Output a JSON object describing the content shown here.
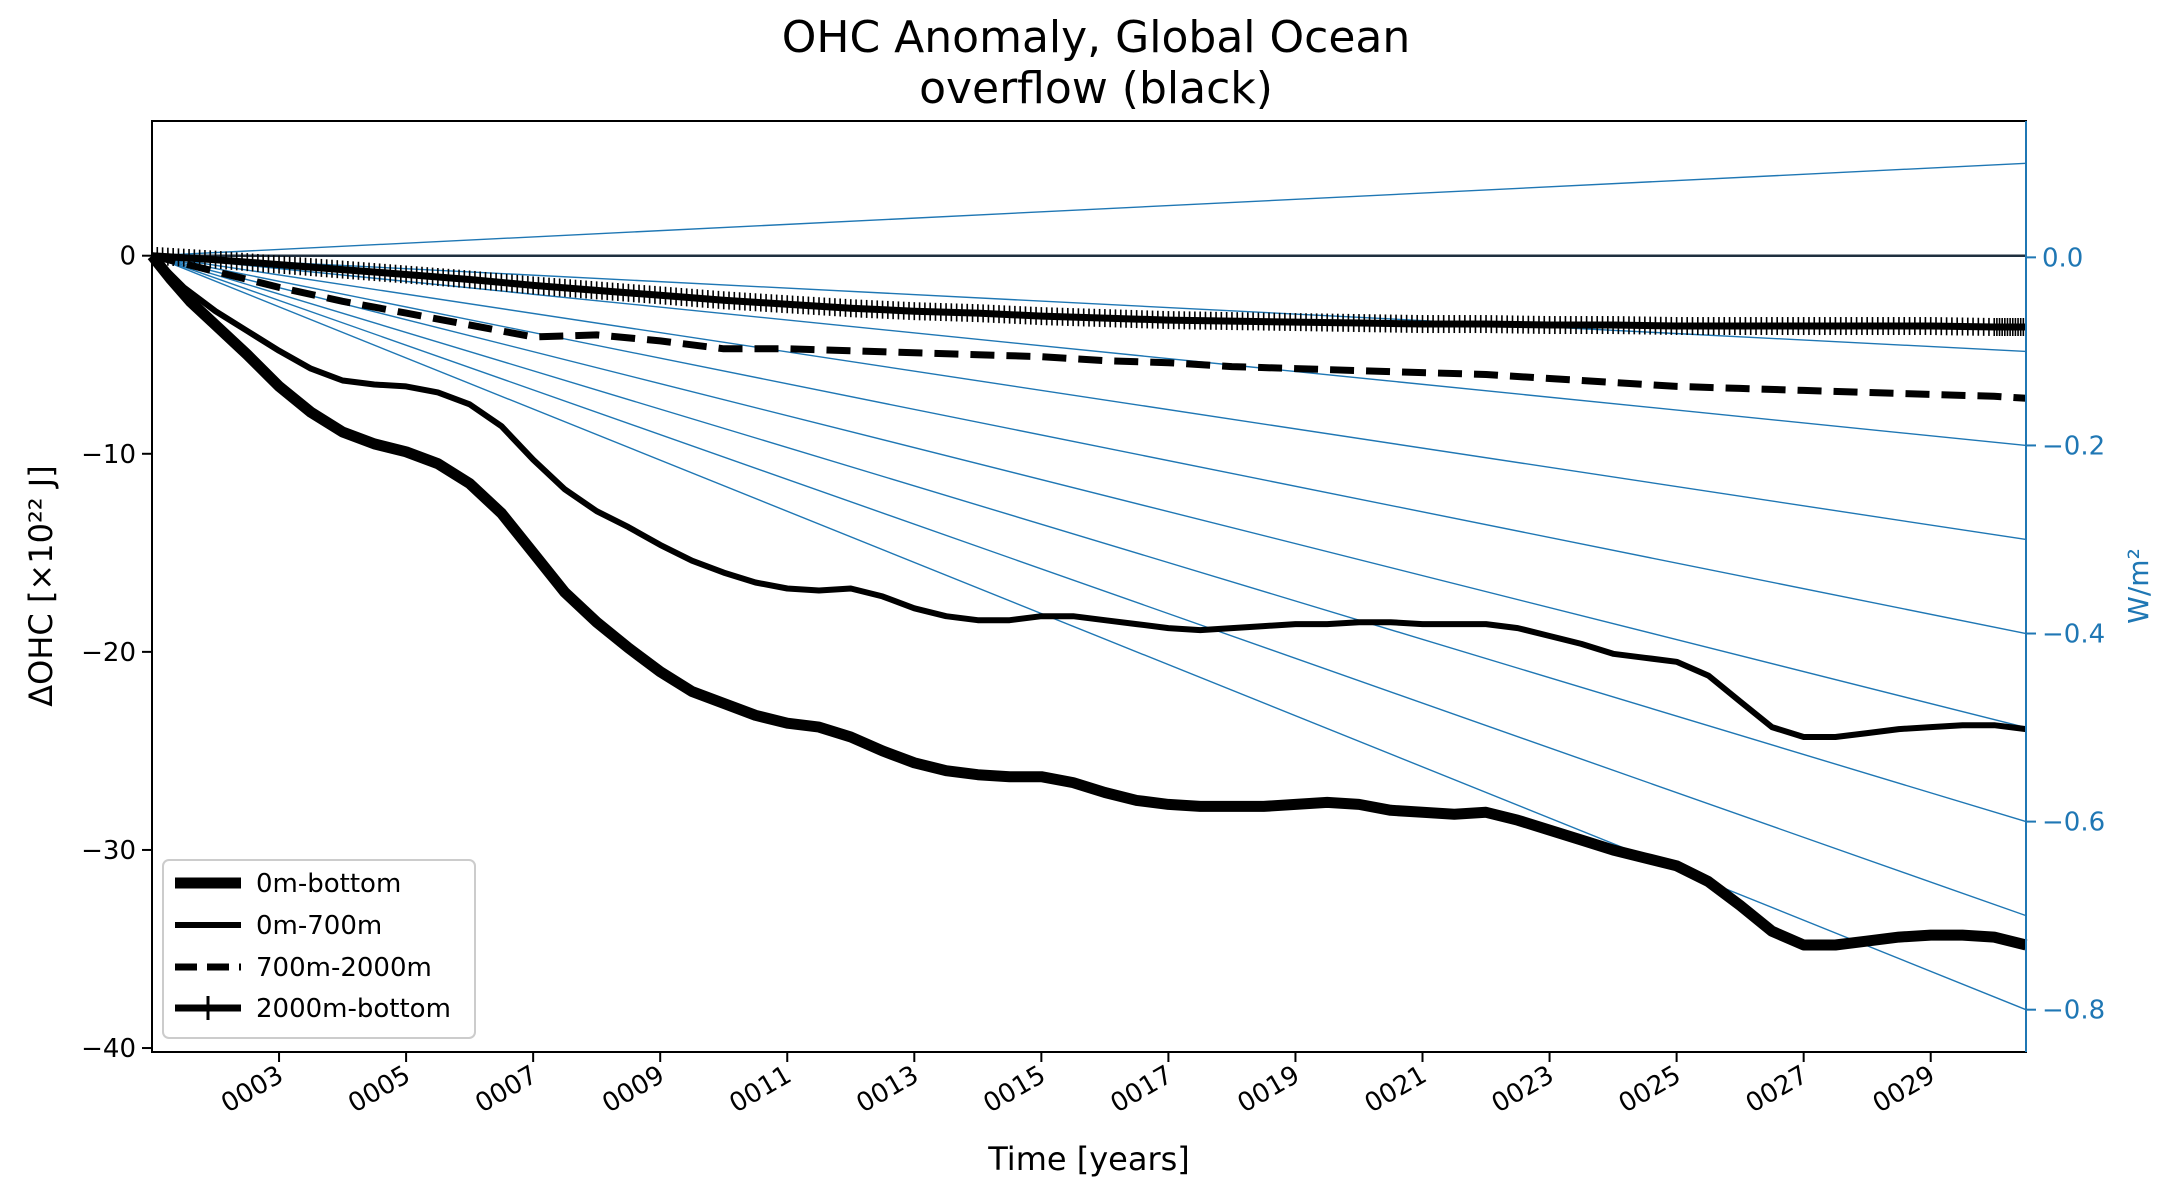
{
  "chart_data": {
    "type": "line",
    "title": [
      "OHC Anomaly, Global Ocean",
      "overflow (black)"
    ],
    "xlabel": "Time [years]",
    "ylabel": "ΔOHC [×10²² J]",
    "ylabel_right": "W/m²",
    "xlim": [
      1.0,
      30.5
    ],
    "ylim": [
      -40.2,
      6.8
    ],
    "ylim_right": [
      -0.845,
      0.145
    ],
    "x_ticks": [
      3,
      5,
      7,
      9,
      11,
      13,
      15,
      17,
      19,
      21,
      23,
      25,
      27,
      29
    ],
    "x_tick_labels": [
      "0003",
      "0005",
      "0007",
      "0009",
      "0011",
      "0013",
      "0015",
      "0017",
      "0019",
      "0021",
      "0023",
      "0025",
      "0027",
      "0029"
    ],
    "y_ticks": [
      0,
      -10,
      -20,
      -30,
      -40
    ],
    "y_tick_labels": [
      "0",
      "−10",
      "−20",
      "−30",
      "−40"
    ],
    "y_right_ticks": [
      0.0,
      -0.2,
      -0.4,
      -0.6,
      -0.8
    ],
    "y_right_tick_labels": [
      "0.0",
      "−0.2",
      "−0.4",
      "−0.6",
      "−0.8"
    ],
    "reference_lines_wm2": [
      0.1,
      -0.1,
      -0.2,
      -0.3,
      -0.4,
      -0.5,
      -0.6,
      -0.7,
      -0.8
    ],
    "zero_line": 0,
    "grid": false,
    "legend_position": "lower-left",
    "colors": {
      "series": "#000000",
      "right_axis": "#1f77b4",
      "reference": "#1f77b4",
      "zero_line": "#1f2f3f"
    },
    "series": [
      {
        "name": "0m-bottom",
        "style": "solid-thick",
        "x": [
          1.0,
          1.3,
          1.6,
          2.0,
          2.5,
          3.0,
          3.5,
          4.0,
          4.5,
          5.0,
          5.5,
          6.0,
          6.5,
          7.0,
          7.5,
          8.0,
          8.5,
          9.0,
          9.5,
          10.0,
          10.5,
          11.0,
          11.5,
          12.0,
          12.5,
          13.0,
          13.5,
          14.0,
          14.5,
          15.0,
          15.5,
          16.0,
          16.5,
          17.0,
          17.5,
          18.0,
          18.5,
          19.0,
          19.5,
          20.0,
          20.5,
          21.0,
          21.5,
          22.0,
          22.5,
          23.0,
          23.5,
          24.0,
          24.5,
          25.0,
          25.5,
          26.0,
          26.5,
          27.0,
          27.5,
          28.0,
          28.5,
          29.0,
          29.5,
          30.0,
          30.5
        ],
        "values": [
          0,
          -1.2,
          -2.3,
          -3.5,
          -5.0,
          -6.6,
          -7.9,
          -8.9,
          -9.5,
          -9.9,
          -10.5,
          -11.5,
          -13.0,
          -15.0,
          -17.0,
          -18.5,
          -19.8,
          -21.0,
          -22.0,
          -22.6,
          -23.2,
          -23.6,
          -23.8,
          -24.3,
          -25.0,
          -25.6,
          -26.0,
          -26.2,
          -26.3,
          -26.3,
          -26.6,
          -27.1,
          -27.5,
          -27.7,
          -27.8,
          -27.8,
          -27.8,
          -27.7,
          -27.6,
          -27.7,
          -28.0,
          -28.1,
          -28.2,
          -28.1,
          -28.5,
          -29.0,
          -29.5,
          -30.0,
          -30.4,
          -30.8,
          -31.6,
          -32.8,
          -34.1,
          -34.8,
          -34.8,
          -34.6,
          -34.4,
          -34.3,
          -34.3,
          -34.4,
          -34.8
        ]
      },
      {
        "name": "0m-700m",
        "style": "solid",
        "x": [
          1.0,
          1.5,
          2.0,
          2.5,
          3.0,
          3.5,
          4.0,
          4.5,
          5.0,
          5.5,
          6.0,
          6.5,
          7.0,
          7.5,
          8.0,
          8.5,
          9.0,
          9.5,
          10.0,
          10.5,
          11.0,
          11.5,
          12.0,
          12.5,
          13.0,
          13.5,
          14.0,
          14.5,
          15.0,
          15.5,
          16.0,
          16.5,
          17.0,
          17.5,
          18.0,
          18.5,
          19.0,
          19.5,
          20.0,
          20.5,
          21.0,
          21.5,
          22.0,
          22.5,
          23.0,
          23.5,
          24.0,
          24.5,
          25.0,
          25.5,
          26.0,
          26.5,
          27.0,
          27.5,
          28.0,
          28.5,
          29.0,
          29.5,
          30.0,
          30.5
        ],
        "values": [
          0,
          -1.6,
          -2.8,
          -3.8,
          -4.8,
          -5.7,
          -6.3,
          -6.5,
          -6.6,
          -6.9,
          -7.5,
          -8.6,
          -10.3,
          -11.8,
          -12.9,
          -13.7,
          -14.6,
          -15.4,
          -16.0,
          -16.5,
          -16.8,
          -16.9,
          -16.8,
          -17.2,
          -17.8,
          -18.2,
          -18.4,
          -18.4,
          -18.2,
          -18.2,
          -18.4,
          -18.6,
          -18.8,
          -18.9,
          -18.8,
          -18.7,
          -18.6,
          -18.6,
          -18.5,
          -18.5,
          -18.6,
          -18.6,
          -18.6,
          -18.8,
          -19.2,
          -19.6,
          -20.1,
          -20.3,
          -20.5,
          -21.2,
          -22.5,
          -23.8,
          -24.3,
          -24.3,
          -24.1,
          -23.9,
          -23.8,
          -23.7,
          -23.7,
          -23.9
        ]
      },
      {
        "name": "700m-2000m",
        "style": "dashed",
        "x": [
          1.0,
          2.0,
          3.0,
          4.0,
          5.0,
          6.0,
          7.0,
          8.0,
          9.0,
          10.0,
          11.0,
          12.0,
          13.0,
          14.0,
          15.0,
          16.0,
          17.0,
          18.0,
          19.0,
          20.0,
          21.0,
          22.0,
          23.0,
          24.0,
          25.0,
          26.0,
          27.0,
          28.0,
          29.0,
          30.0,
          30.5
        ],
        "values": [
          0,
          -0.8,
          -1.6,
          -2.3,
          -2.9,
          -3.5,
          -4.1,
          -4.0,
          -4.3,
          -4.7,
          -4.7,
          -4.8,
          -4.9,
          -5.0,
          -5.1,
          -5.3,
          -5.4,
          -5.6,
          -5.7,
          -5.8,
          -5.9,
          -6.0,
          -6.2,
          -6.4,
          -6.6,
          -6.7,
          -6.8,
          -6.9,
          -7.0,
          -7.1,
          -7.2
        ]
      },
      {
        "name": "2000m-bottom",
        "style": "plus-marker",
        "x": [
          1.0,
          2.0,
          3.0,
          4.0,
          5.0,
          6.0,
          7.0,
          8.0,
          9.0,
          10.0,
          11.0,
          12.0,
          13.0,
          14.0,
          15.0,
          16.0,
          17.0,
          18.0,
          19.0,
          20.0,
          21.0,
          22.0,
          23.0,
          24.0,
          25.0,
          26.0,
          27.0,
          28.0,
          29.0,
          30.0,
          30.5
        ],
        "values": [
          0,
          -0.2,
          -0.45,
          -0.7,
          -0.95,
          -1.2,
          -1.5,
          -1.75,
          -2.0,
          -2.25,
          -2.45,
          -2.65,
          -2.8,
          -2.9,
          -3.05,
          -3.15,
          -3.25,
          -3.3,
          -3.35,
          -3.4,
          -3.45,
          -3.45,
          -3.5,
          -3.5,
          -3.55,
          -3.55,
          -3.55,
          -3.55,
          -3.55,
          -3.6,
          -3.6
        ]
      }
    ]
  }
}
